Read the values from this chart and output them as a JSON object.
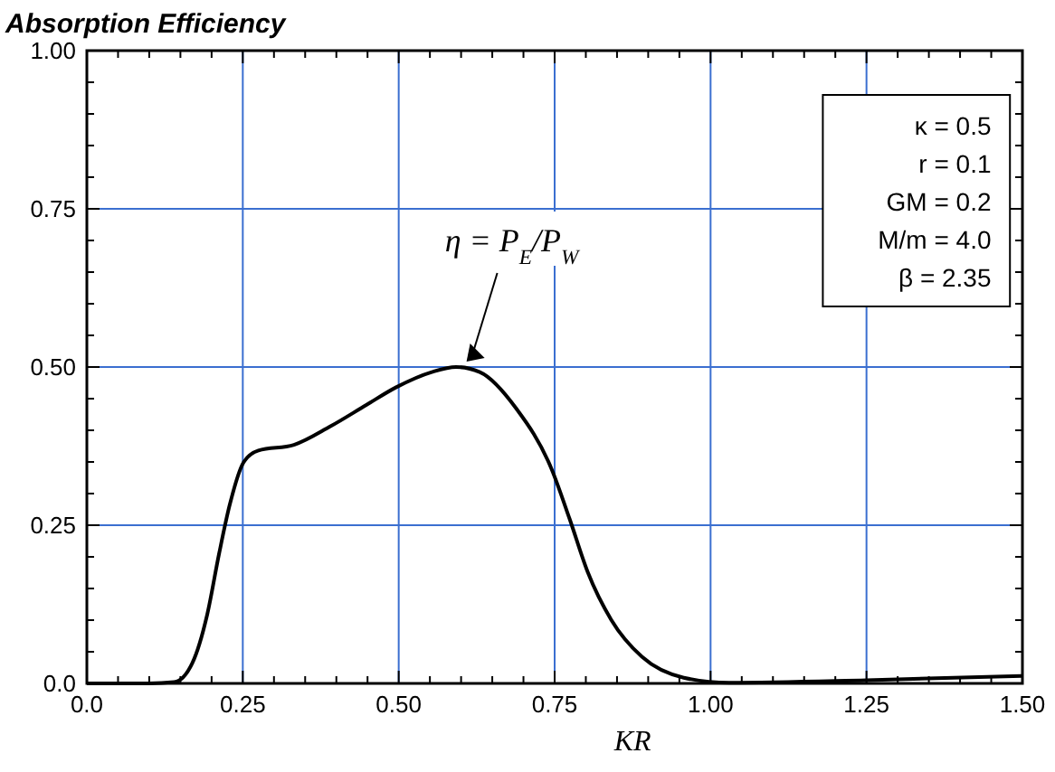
{
  "chart_data": {
    "type": "line",
    "title": "Absorption Efficiency",
    "xlabel": "KR",
    "x": [
      0,
      0.1,
      0.14,
      0.169,
      0.193,
      0.212,
      0.229,
      0.251,
      0.275,
      0.332,
      0.39,
      0.448,
      0.496,
      0.553,
      0.592,
      0.63,
      0.688,
      0.745,
      0.774,
      0.803,
      0.841,
      0.89,
      0.957,
      1.03,
      1.25,
      1.5
    ],
    "series": [
      {
        "color": "#000000",
        "values": [
          0,
          0,
          0.002,
          0.032,
          0.109,
          0.205,
          0.282,
          0.349,
          0.368,
          0.377,
          0.406,
          0.44,
          0.468,
          0.492,
          0.5,
          0.492,
          0.435,
          0.339,
          0.26,
          0.176,
          0.1,
          0.042,
          0.009,
          0.001,
          0.005,
          0.012
        ]
      }
    ],
    "xlim": [
      0,
      1.5
    ],
    "ylim": [
      0,
      1
    ],
    "xticks": [
      {
        "value": 0,
        "label": "0.0"
      },
      {
        "value": 0.05,
        "label": null
      },
      {
        "value": 0.1,
        "label": null
      },
      {
        "value": 0.15,
        "label": null
      },
      {
        "value": 0.2,
        "label": null
      },
      0.25,
      {
        "value": 0.3,
        "label": null
      },
      {
        "value": 0.35,
        "label": null
      },
      {
        "value": 0.4,
        "label": null
      },
      {
        "value": 0.45,
        "label": null
      },
      {
        "value": 0.5,
        "label": "0.50"
      },
      {
        "value": 0.55,
        "label": null
      },
      {
        "value": 0.6,
        "label": null
      },
      {
        "value": 0.65,
        "label": null
      },
      {
        "value": 0.7,
        "label": null
      },
      0.75,
      {
        "value": 0.8,
        "label": null
      },
      {
        "value": 0.85,
        "label": null
      },
      {
        "value": 0.9,
        "label": null
      },
      {
        "value": 0.95,
        "label": null
      },
      {
        "value": 1,
        "label": "1.00"
      },
      {
        "value": 1.05,
        "label": null
      },
      {
        "value": 1.1,
        "label": null
      },
      {
        "value": 1.15,
        "label": null
      },
      {
        "value": 1.2,
        "label": null
      },
      1.25,
      {
        "value": 1.3,
        "label": null
      },
      {
        "value": 1.35,
        "label": null
      },
      {
        "value": 1.4,
        "label": null
      },
      {
        "value": 1.45,
        "label": null
      },
      {
        "value": 1.5,
        "label": "1.50"
      }
    ],
    "yticks": [
      {
        "value": 0,
        "label": "0.0"
      },
      {
        "value": 0.05,
        "label": null
      },
      {
        "value": 0.1,
        "label": null
      },
      {
        "value": 0.15,
        "label": null
      },
      {
        "value": 0.2,
        "label": null
      },
      0.25,
      {
        "value": 0.3,
        "label": null
      },
      {
        "value": 0.35,
        "label": null
      },
      {
        "value": 0.4,
        "label": null
      },
      {
        "value": 0.45,
        "label": null
      },
      {
        "value": 0.5,
        "label": "0.50"
      },
      {
        "value": 0.55,
        "label": null
      },
      {
        "value": 0.6,
        "label": null
      },
      {
        "value": 0.65,
        "label": null
      },
      {
        "value": 0.7,
        "label": null
      },
      0.75,
      {
        "value": 0.8,
        "label": null
      },
      {
        "value": 0.85,
        "label": null
      },
      {
        "value": 0.9,
        "label": null
      },
      {
        "value": 0.95,
        "label": null
      },
      {
        "value": 1,
        "label": "1.00"
      }
    ],
    "grid": true,
    "line_style": "solid",
    "marker": "none",
    "annotations": [
      {
        "text": "η = P$_{E}$/P$_{W}$",
        "x": 0.6,
        "y": 0.5
      },
      "κ = 0.5",
      "r = 0.1",
      "GM = 0.2",
      "M/m = 4.0",
      "β = 2.35"
    ]
  }
}
